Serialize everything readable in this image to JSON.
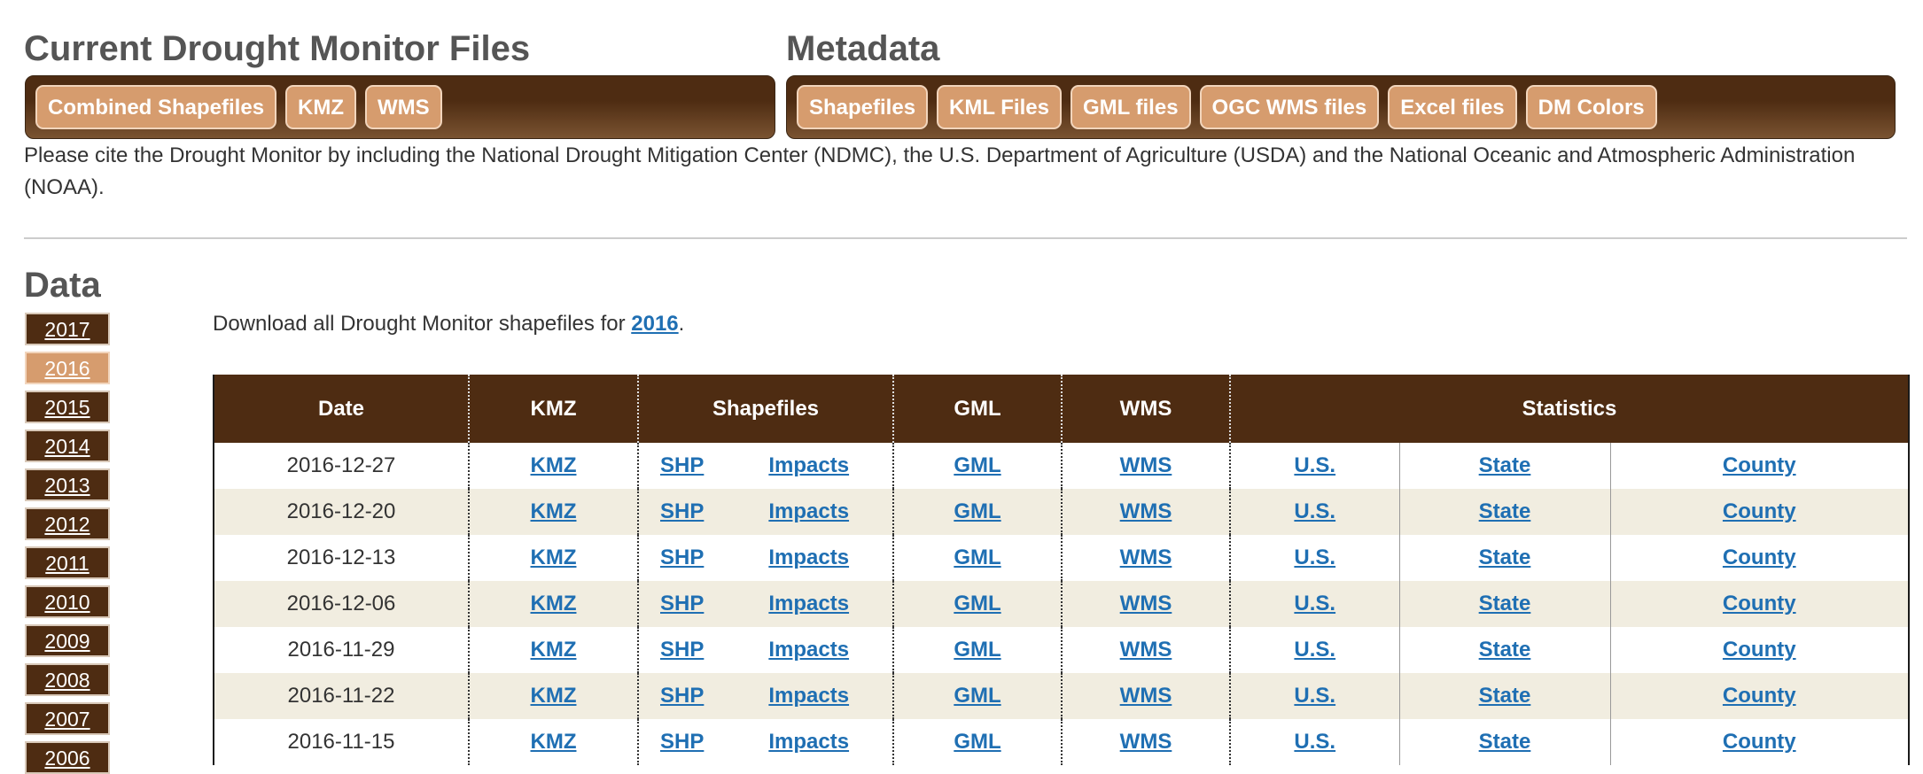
{
  "files": {
    "title": "Current Drought Monitor Files",
    "buttons": [
      "Combined Shapefiles",
      "KMZ",
      "WMS"
    ]
  },
  "metadata": {
    "title": "Metadata",
    "buttons": [
      "Shapefiles",
      "KML Files",
      "GML files",
      "OGC WMS files",
      "Excel files",
      "DM Colors"
    ]
  },
  "citation": "Please cite the Drought Monitor by including the National Drought Mitigation Center (NDMC), the U.S. Department of Agriculture (USDA) and the National Oceanic and Atmospheric Administration (NOAA).",
  "data": {
    "title": "Data",
    "years": [
      "2017",
      "2016",
      "2015",
      "2014",
      "2013",
      "2012",
      "2011",
      "2010",
      "2009",
      "2008",
      "2007",
      "2006"
    ],
    "active_year": "2016",
    "download_prefix": "Download all Drought Monitor shapefiles for ",
    "download_year": "2016",
    "download_suffix": "."
  },
  "table": {
    "headers": [
      "Date",
      "KMZ",
      "Shapefiles",
      "GML",
      "WMS",
      "Statistics"
    ],
    "link_labels": {
      "kmz": "KMZ",
      "shp": "SHP",
      "impacts": "Impacts",
      "gml": "GML",
      "wms": "WMS",
      "us": "U.S.",
      "state": "State",
      "county": "County"
    },
    "rows": [
      {
        "date": "2016-12-27"
      },
      {
        "date": "2016-12-20"
      },
      {
        "date": "2016-12-13"
      },
      {
        "date": "2016-12-06"
      },
      {
        "date": "2016-11-29"
      },
      {
        "date": "2016-11-22"
      },
      {
        "date": "2016-11-15"
      }
    ]
  },
  "colors": {
    "brown": "#4e2c12",
    "tan": "#d69c6e",
    "link": "#1f6fb3",
    "row_alt": "#f1ede0"
  }
}
